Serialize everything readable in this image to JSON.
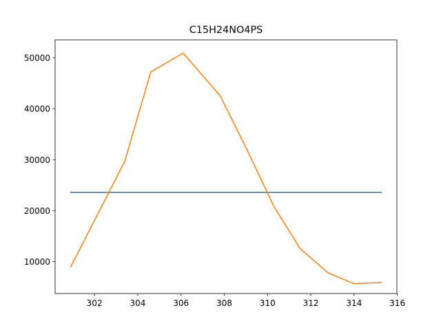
{
  "chart_data": {
    "type": "line",
    "title": "C15H24NO4PS",
    "xlabel": "",
    "ylabel": "",
    "xlim": [
      300.18,
      315.98
    ],
    "ylim": [
      3750,
      53500
    ],
    "x_ticks": [
      302,
      304,
      306,
      308,
      310,
      312,
      314,
      316
    ],
    "y_ticks": [
      10000,
      20000,
      30000,
      40000,
      50000
    ],
    "grid": false,
    "series": [
      {
        "color": "#1f77b4",
        "x": [
          300.9,
          315.26
        ],
        "y": [
          23600,
          23600
        ]
      },
      {
        "color": "#ff7f0e",
        "x": [
          300.9,
          302.1,
          303.4,
          304.6,
          306.1,
          307.8,
          309.0,
          310.3,
          311.5,
          312.8,
          314.0,
          315.26
        ],
        "y": [
          9000,
          18900,
          29700,
          47200,
          50900,
          42600,
          32400,
          20800,
          12600,
          7800,
          5700,
          5900
        ]
      }
    ]
  }
}
